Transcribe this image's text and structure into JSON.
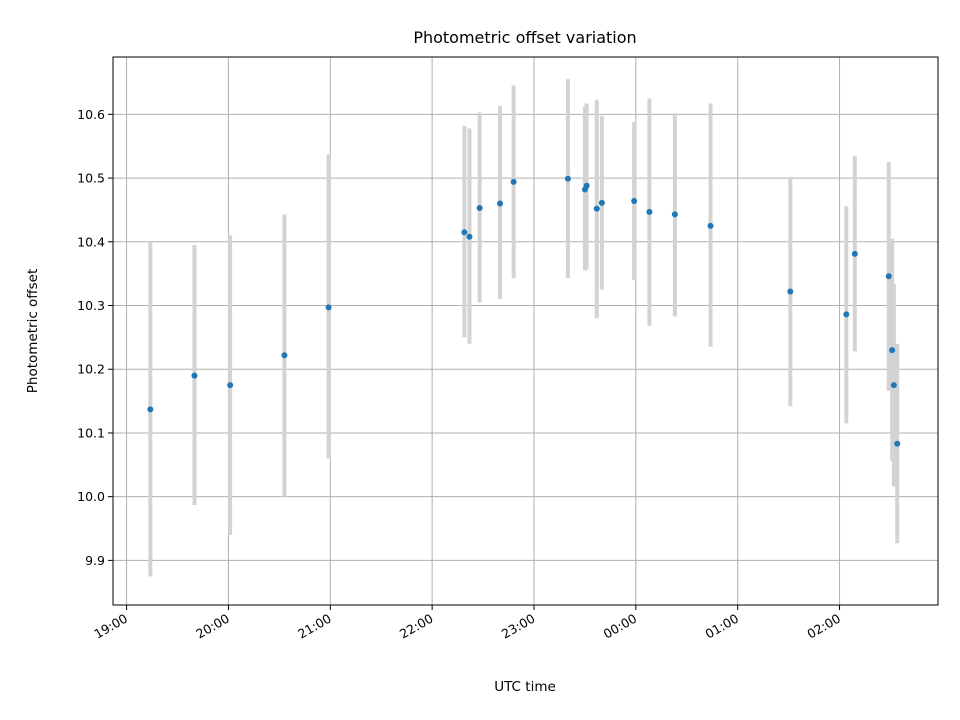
{
  "chart_data": {
    "type": "scatter",
    "title": "Photometric offset variation",
    "xlabel": "UTC time",
    "ylabel": "Photometric offset",
    "x_tick_labels": [
      "19:00",
      "20:00",
      "21:00",
      "22:00",
      "23:00",
      "00:00",
      "01:00",
      "02:00"
    ],
    "y_tick_labels": [
      "9.9",
      "10.0",
      "10.1",
      "10.2",
      "10.3",
      "10.4",
      "10.5",
      "10.6"
    ],
    "y_ticks": [
      9.9,
      10.0,
      10.1,
      10.2,
      10.3,
      10.4,
      10.5,
      10.6
    ],
    "xlim": [
      "18:52",
      "02:58"
    ],
    "ylim": [
      9.83,
      10.69
    ],
    "grid": true,
    "colors": {
      "point": "#1f77b4",
      "errorbar": "#d3d3d3",
      "grid": "#b0b0b0"
    },
    "points": [
      {
        "x": "19:14",
        "y": 10.137,
        "ylow": 9.875,
        "yhigh": 10.4
      },
      {
        "x": "19:40",
        "y": 10.19,
        "ylow": 9.987,
        "yhigh": 10.395
      },
      {
        "x": "20:01",
        "y": 10.175,
        "ylow": 9.94,
        "yhigh": 10.41
      },
      {
        "x": "20:33",
        "y": 10.222,
        "ylow": 10.0,
        "yhigh": 10.443
      },
      {
        "x": "20:59",
        "y": 10.297,
        "ylow": 10.06,
        "yhigh": 10.537
      },
      {
        "x": "22:19",
        "y": 10.415,
        "ylow": 10.25,
        "yhigh": 10.582
      },
      {
        "x": "22:22",
        "y": 10.408,
        "ylow": 10.24,
        "yhigh": 10.578
      },
      {
        "x": "22:28",
        "y": 10.453,
        "ylow": 10.305,
        "yhigh": 10.603
      },
      {
        "x": "22:40",
        "y": 10.46,
        "ylow": 10.31,
        "yhigh": 10.613
      },
      {
        "x": "22:48",
        "y": 10.494,
        "ylow": 10.343,
        "yhigh": 10.645
      },
      {
        "x": "23:20",
        "y": 10.499,
        "ylow": 10.343,
        "yhigh": 10.655
      },
      {
        "x": "23:30",
        "y": 10.482,
        "ylow": 10.355,
        "yhigh": 10.612
      },
      {
        "x": "23:31",
        "y": 10.488,
        "ylow": 10.357,
        "yhigh": 10.617
      },
      {
        "x": "23:37",
        "y": 10.452,
        "ylow": 10.28,
        "yhigh": 10.623
      },
      {
        "x": "23:40",
        "y": 10.461,
        "ylow": 10.325,
        "yhigh": 10.597
      },
      {
        "x": "23:59",
        "y": 10.464,
        "ylow": 10.34,
        "yhigh": 10.588
      },
      {
        "x": "00:08",
        "y": 10.447,
        "ylow": 10.268,
        "yhigh": 10.625
      },
      {
        "x": "00:23",
        "y": 10.443,
        "ylow": 10.283,
        "yhigh": 10.602
      },
      {
        "x": "00:44",
        "y": 10.425,
        "ylow": 10.235,
        "yhigh": 10.617
      },
      {
        "x": "01:31",
        "y": 10.322,
        "ylow": 10.142,
        "yhigh": 10.502
      },
      {
        "x": "02:04",
        "y": 10.286,
        "ylow": 10.115,
        "yhigh": 10.456
      },
      {
        "x": "02:09",
        "y": 10.381,
        "ylow": 10.228,
        "yhigh": 10.535
      },
      {
        "x": "02:29",
        "y": 10.346,
        "ylow": 10.166,
        "yhigh": 10.525
      },
      {
        "x": "02:31",
        "y": 10.23,
        "ylow": 10.056,
        "yhigh": 10.405
      },
      {
        "x": "02:32",
        "y": 10.175,
        "ylow": 10.016,
        "yhigh": 10.334
      },
      {
        "x": "02:34",
        "y": 10.083,
        "ylow": 9.927,
        "yhigh": 10.24
      }
    ]
  }
}
